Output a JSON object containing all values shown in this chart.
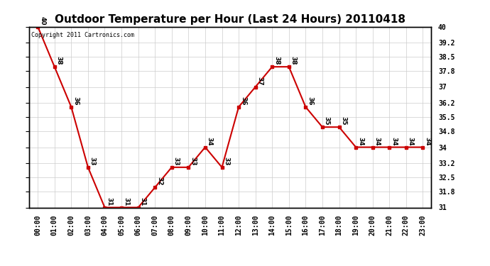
{
  "title": "Outdoor Temperature per Hour (Last 24 Hours) 20110418",
  "hours": [
    "00:00",
    "01:00",
    "02:00",
    "03:00",
    "04:00",
    "05:00",
    "06:00",
    "07:00",
    "08:00",
    "09:00",
    "10:00",
    "11:00",
    "12:00",
    "13:00",
    "14:00",
    "15:00",
    "16:00",
    "17:00",
    "18:00",
    "19:00",
    "20:00",
    "21:00",
    "22:00",
    "23:00"
  ],
  "temps": [
    40,
    38,
    36,
    33,
    31,
    31,
    31,
    32,
    33,
    33,
    34,
    33,
    36,
    37,
    38,
    38,
    36,
    35,
    35,
    34,
    34,
    34,
    34,
    34
  ],
  "ylim": [
    31.0,
    40.0
  ],
  "yticks": [
    31.0,
    31.8,
    32.5,
    33.2,
    34.0,
    34.8,
    35.5,
    36.2,
    37.0,
    37.8,
    38.5,
    39.2,
    40.0
  ],
  "line_color": "#cc0000",
  "marker_color": "#cc0000",
  "grid_color": "#cccccc",
  "bg_color": "#ffffff",
  "copyright_text": "Copyright 2011 Cartronics.com",
  "title_fontsize": 11,
  "tick_fontsize": 7,
  "annotation_fontsize": 6.5,
  "copyright_fontsize": 6
}
